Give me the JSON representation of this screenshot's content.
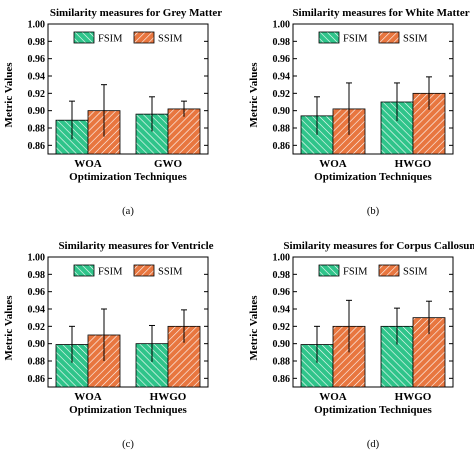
{
  "colors": {
    "fsim": "#2fc48a",
    "ssim": "#e8763f",
    "hatch": "#ffffff",
    "axis": "#000000"
  },
  "legend": {
    "fsim": "FSIM",
    "ssim": "SSIM"
  },
  "chart_data": [
    {
      "type": "bar",
      "panel": "(a)",
      "title": "Similarity measures for Grey Matter",
      "xlabel": "Optimization Techniques",
      "ylabel": "Metric Values",
      "ylim": [
        0.85,
        1.0
      ],
      "yticks": [
        "1.00",
        "0.98",
        "0.96",
        "0.94",
        "0.92",
        "0.90",
        "0.88",
        "0.86"
      ],
      "yticks_values": [
        1.0,
        0.98,
        0.96,
        0.94,
        0.92,
        0.9,
        0.88,
        0.86
      ],
      "categories": [
        "WOA",
        "GWO"
      ],
      "series": [
        {
          "name": "FSIM",
          "values": [
            0.889,
            0.896
          ],
          "errors": [
            0.022,
            0.02
          ]
        },
        {
          "name": "SSIM",
          "values": [
            0.9,
            0.902
          ],
          "errors": [
            0.03,
            0.009
          ]
        }
      ],
      "legend_position": "top"
    },
    {
      "type": "bar",
      "panel": "(b)",
      "title": "Similarity measures for White Matter",
      "xlabel": "Optimization Techniques",
      "ylabel": "Metric Values",
      "ylim": [
        0.85,
        1.0
      ],
      "yticks": [
        "1.00",
        "0.98",
        "0.96",
        "0.94",
        "0.92",
        "0.90",
        "0.88",
        "0.86"
      ],
      "yticks_values": [
        1.0,
        0.98,
        0.96,
        0.94,
        0.92,
        0.9,
        0.88,
        0.86
      ],
      "categories": [
        "WOA",
        "HWGO"
      ],
      "series": [
        {
          "name": "FSIM",
          "values": [
            0.894,
            0.91
          ],
          "errors": [
            0.022,
            0.022
          ]
        },
        {
          "name": "SSIM",
          "values": [
            0.902,
            0.92
          ],
          "errors": [
            0.03,
            0.019
          ]
        }
      ],
      "legend_position": "top"
    },
    {
      "type": "bar",
      "panel": "(c)",
      "title": "Similarity measures for Ventricle",
      "xlabel": "Optimization Techniques",
      "ylabel": "Metric Values",
      "ylim": [
        0.85,
        1.0
      ],
      "yticks": [
        "1.00",
        "0.98",
        "0.96",
        "0.94",
        "0.92",
        "0.90",
        "0.88",
        "0.86"
      ],
      "yticks_values": [
        1.0,
        0.98,
        0.96,
        0.94,
        0.92,
        0.9,
        0.88,
        0.86
      ],
      "categories": [
        "WOA",
        "HWGO"
      ],
      "series": [
        {
          "name": "FSIM",
          "values": [
            0.899,
            0.9
          ],
          "errors": [
            0.021,
            0.021
          ]
        },
        {
          "name": "SSIM",
          "values": [
            0.91,
            0.92
          ],
          "errors": [
            0.03,
            0.019
          ]
        }
      ],
      "legend_position": "top"
    },
    {
      "type": "bar",
      "panel": "(d)",
      "title": "Similarity measures for Corpus Callosum",
      "xlabel": "Optimization Techniques",
      "ylabel": "Metric Values",
      "ylim": [
        0.85,
        1.0
      ],
      "yticks": [
        "1.00",
        "0.98",
        "0.96",
        "0.94",
        "0.92",
        "0.90",
        "0.88",
        "0.86"
      ],
      "yticks_values": [
        1.0,
        0.98,
        0.96,
        0.94,
        0.92,
        0.9,
        0.88,
        0.86
      ],
      "categories": [
        "WOA",
        "HWGO"
      ],
      "series": [
        {
          "name": "FSIM",
          "values": [
            0.899,
            0.92
          ],
          "errors": [
            0.021,
            0.021
          ]
        },
        {
          "name": "SSIM",
          "values": [
            0.92,
            0.93
          ],
          "errors": [
            0.03,
            0.019
          ]
        }
      ],
      "legend_position": "top"
    }
  ]
}
